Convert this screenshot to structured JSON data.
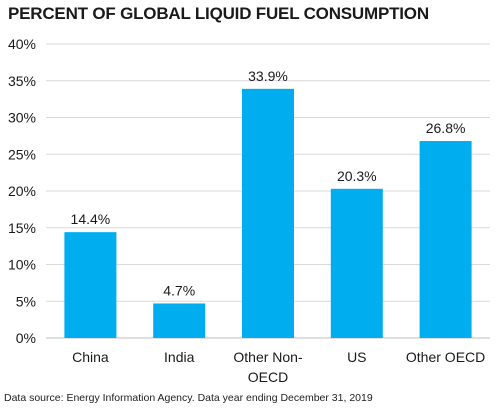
{
  "chart_data": {
    "type": "bar",
    "title": "PERCENT OF GLOBAL LIQUID FUEL CONSUMPTION",
    "categories": [
      [
        "China"
      ],
      [
        "India"
      ],
      [
        "Other Non-",
        "OECD"
      ],
      [
        "US"
      ],
      [
        "Other OECD"
      ]
    ],
    "values": [
      14.4,
      4.7,
      33.9,
      20.3,
      26.8
    ],
    "data_labels": [
      "14.4%",
      "4.7%",
      "33.9%",
      "20.3%",
      "26.8%"
    ],
    "y_ticks": [
      0,
      5,
      10,
      15,
      20,
      25,
      30,
      35,
      40
    ],
    "y_tick_labels": [
      "0%",
      "5%",
      "10%",
      "15%",
      "20%",
      "25%",
      "30%",
      "35%",
      "40%"
    ],
    "ylim": [
      0,
      40
    ],
    "xlabel": "",
    "ylabel": "",
    "grid": true,
    "legend": "none",
    "colors": {
      "bar": "#00aeef",
      "grid": "#d9d9d9",
      "axis": "#bfbfbf",
      "text": "#1a1a1a"
    }
  },
  "footer": {
    "source": "Data source: Energy Information Agency. Data year ending December 31, 2019"
  }
}
